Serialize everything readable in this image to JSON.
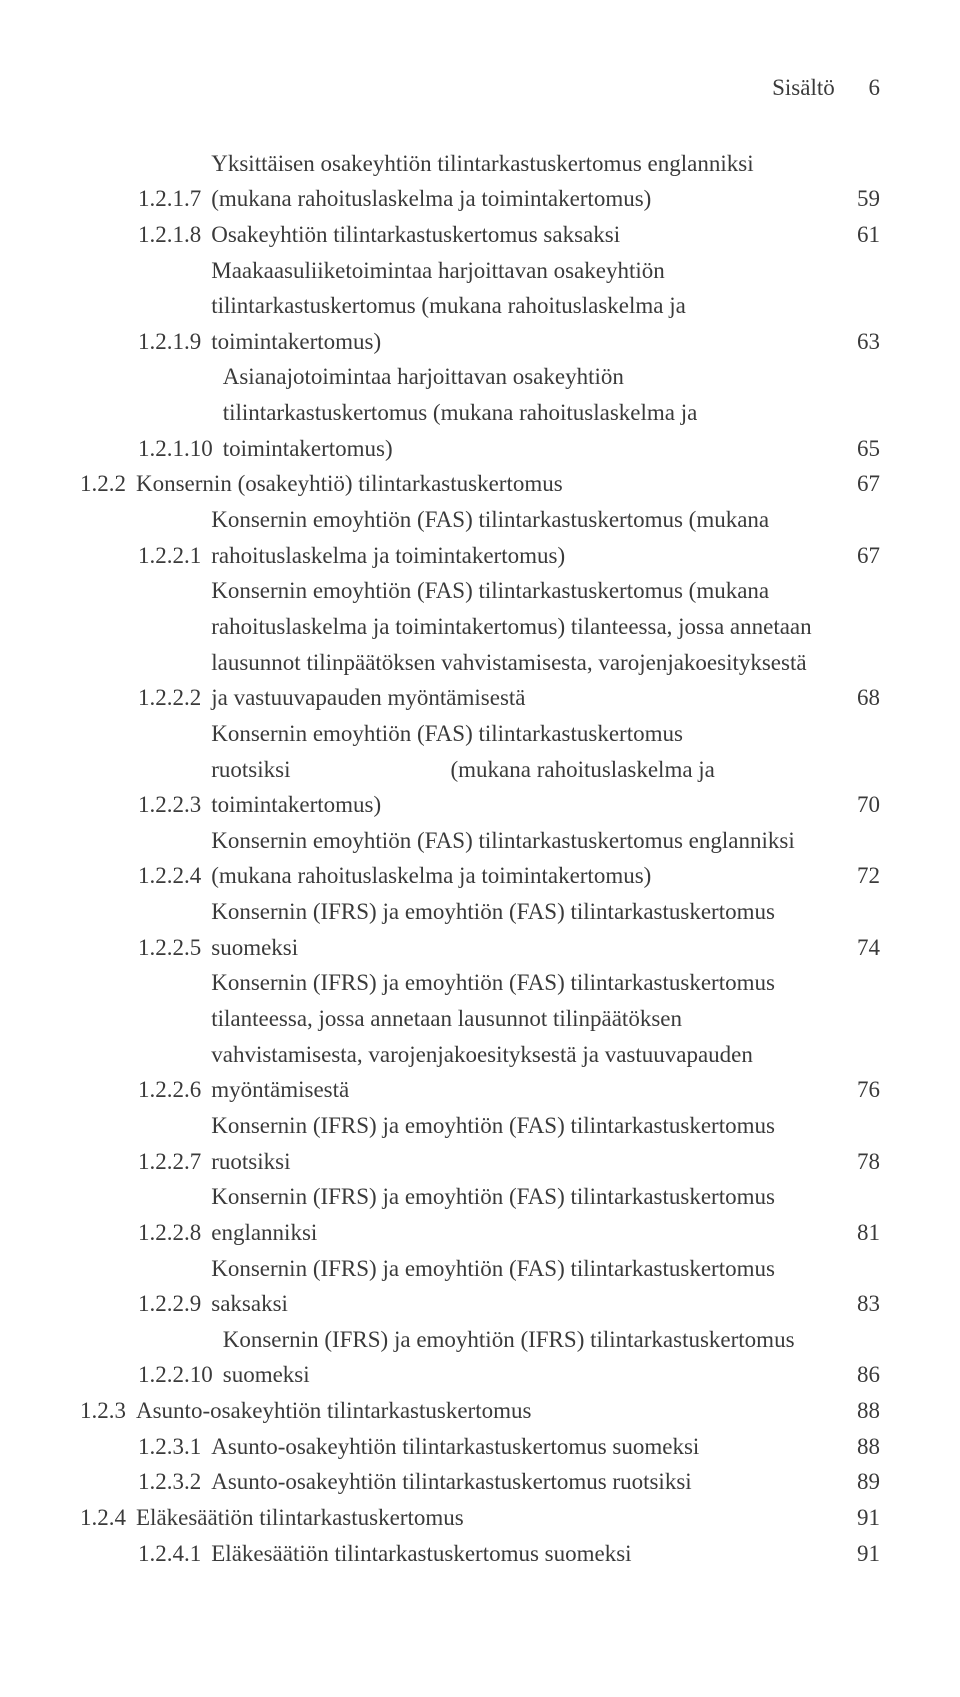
{
  "header": {
    "title": "Sisältö",
    "page": "6"
  },
  "entries": [
    {
      "lvl": 1,
      "num": "1.2.1.7",
      "text": "Yksittäisen osakeyhtiön tilintarkastuskertomus englanniksi (mukana rahoituslaskelma ja toimintakertomus)",
      "page": "59"
    },
    {
      "lvl": 1,
      "num": "1.2.1.8",
      "text": "Osakeyhtiön tilintarkastuskertomus saksaksi",
      "page": "61"
    },
    {
      "lvl": 1,
      "num": "1.2.1.9",
      "text": "Maakaasuliiketoimintaa harjoittavan osakeyhtiön tilintarkastuskertomus (mukana rahoituslaskelma ja toimintakertomus)",
      "page": "63"
    },
    {
      "lvl": 1,
      "num": "1.2.1.10",
      "text": "Asianajotoimintaa harjoittavan osakeyhtiön tilintarkastuskertomus (mukana rahoituslaskelma ja toimintakertomus)",
      "page": "65"
    },
    {
      "lvl": 0,
      "num": "1.2.2",
      "text": "Konsernin (osakeyhtiö) tilintarkastuskertomus",
      "page": "67"
    },
    {
      "lvl": 1,
      "num": "1.2.2.1",
      "text": "Konsernin emoyhtiön (FAS) tilintarkastuskertomus (mukana rahoituslaskelma ja toimintakertomus)",
      "page": "67"
    },
    {
      "lvl": 1,
      "num": "1.2.2.2",
      "text": "Konsernin emoyhtiön (FAS) tilintarkastuskertomus (mukana rahoituslaskelma ja toimintakertomus) tilanteessa, jossa annetaan lausunnot tilinpäätöksen vahvistamisesta, varojenjakoesityksestä ja vastuuvapauden myöntämisestä",
      "page": "68"
    },
    {
      "lvl": 1,
      "num": "1.2.2.3",
      "text_a": "Konsernin emoyhtiön (FAS) tilintarkastuskertomus ruotsiksi",
      "text_b": "(mukana rahoituslaskelma ja toimintakertomus)",
      "page": "70",
      "special": true
    },
    {
      "lvl": 1,
      "num": "1.2.2.4",
      "text": "Konsernin emoyhtiön (FAS) tilintarkastuskertomus englanniksi (mukana rahoituslaskelma ja toimintakertomus)",
      "page": "72"
    },
    {
      "lvl": 1,
      "num": "1.2.2.5",
      "text": "Konsernin (IFRS) ja emoyhtiön (FAS) tilintarkastuskertomus suomeksi",
      "page": "74"
    },
    {
      "lvl": 1,
      "num": "1.2.2.6",
      "text": "Konsernin (IFRS) ja emoyhtiön (FAS) tilintarkastuskertomus tilanteessa, jossa annetaan lausunnot tilinpäätöksen vahvistamisesta, varojenjakoesityksestä ja vastuuvapauden myöntämisestä",
      "page": "76"
    },
    {
      "lvl": 1,
      "num": "1.2.2.7",
      "text": "Konsernin (IFRS) ja emoyhtiön (FAS) tilintarkastuskertomus ruotsiksi",
      "page": "78"
    },
    {
      "lvl": 1,
      "num": "1.2.2.8",
      "text": "Konsernin (IFRS) ja emoyhtiön (FAS) tilintarkastuskertomus englanniksi",
      "page": "81"
    },
    {
      "lvl": 1,
      "num": "1.2.2.9",
      "text": "Konsernin (IFRS) ja emoyhtiön (FAS) tilintarkastuskertomus saksaksi",
      "page": "83"
    },
    {
      "lvl": 1,
      "num": "1.2.2.10",
      "text": "Konsernin (IFRS) ja emoyhtiön (IFRS) tilintarkastuskertomus suomeksi",
      "page": "86"
    },
    {
      "lvl": 0,
      "num": "1.2.3",
      "text": "Asunto-osakeyhtiön tilintarkastuskertomus",
      "page": "88"
    },
    {
      "lvl": 1,
      "num": "1.2.3.1",
      "text": "Asunto-osakeyhtiön tilintarkastuskertomus suomeksi",
      "page": "88"
    },
    {
      "lvl": 1,
      "num": "1.2.3.2",
      "text": "Asunto-osakeyhtiön tilintarkastuskertomus ruotsiksi",
      "page": "89"
    },
    {
      "lvl": 0,
      "num": "1.2.4",
      "text": "Eläkesäätiön tilintarkastuskertomus",
      "page": "91"
    },
    {
      "lvl": 1,
      "num": "1.2.4.1",
      "text": "Eläkesäätiön tilintarkastuskertomus suomeksi",
      "page": "91"
    }
  ]
}
